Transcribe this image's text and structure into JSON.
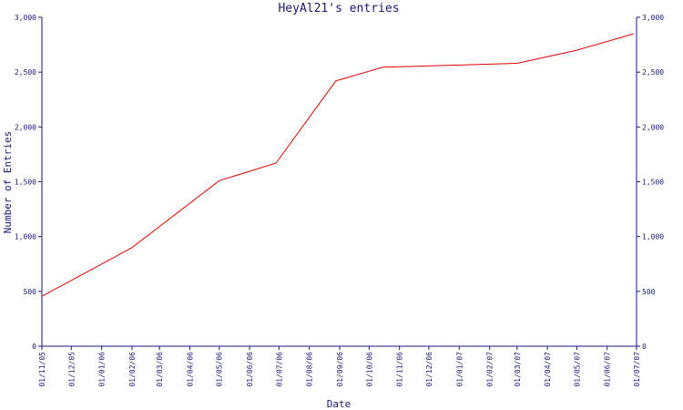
{
  "chart_data": {
    "type": "line",
    "title": "HeyAl21's entries",
    "xlabel": "Date",
    "ylabel": "Number of Entries",
    "ylim": [
      0,
      3000
    ],
    "y_ticks": [
      "0",
      "500",
      "1,000",
      "1,500",
      "2,000",
      "2,500",
      "3,000"
    ],
    "y_tick_values": [
      0,
      500,
      1000,
      1500,
      2000,
      2500,
      3000
    ],
    "x_tick_labels": [
      "01/11/05",
      "01/12/05",
      "01/01/06",
      "01/02/06",
      "01/03/06",
      "01/04/06",
      "01/05/06",
      "01/06/06",
      "01/07/06",
      "01/08/06",
      "01/09/06",
      "01/10/06",
      "01/11/06",
      "01/12/06",
      "01/01/07",
      "01/02/07",
      "01/03/07",
      "01/04/07",
      "01/05/07",
      "01/06/07",
      "01/07/07"
    ],
    "x_tick_dates": [
      "2005-11-01",
      "2005-12-01",
      "2006-01-01",
      "2006-02-01",
      "2006-03-01",
      "2006-04-01",
      "2006-05-01",
      "2006-06-01",
      "2006-07-01",
      "2006-08-01",
      "2006-09-01",
      "2006-10-01",
      "2006-11-01",
      "2006-12-01",
      "2007-01-01",
      "2007-02-01",
      "2007-03-01",
      "2007-04-01",
      "2007-05-01",
      "2007-06-01",
      "2007-07-01"
    ],
    "xlim": [
      "2005-11-01",
      "2007-07-01"
    ],
    "series": [
      {
        "color": "#e00000",
        "points": [
          {
            "x": "2005-11-01",
            "y": 455
          },
          {
            "x": "2006-02-01",
            "y": 900
          },
          {
            "x": "2006-05-01",
            "y": 1510
          },
          {
            "x": "2006-06-28",
            "y": 1670
          },
          {
            "x": "2006-08-28",
            "y": 2420
          },
          {
            "x": "2006-10-15",
            "y": 2545
          },
          {
            "x": "2007-03-01",
            "y": 2580
          },
          {
            "x": "2007-05-01",
            "y": 2700
          },
          {
            "x": "2007-06-28",
            "y": 2850
          }
        ]
      }
    ],
    "grid": false,
    "colors": {
      "axis": "#1a1a7a",
      "text": "#1a1a7a",
      "line": "#e00000"
    }
  }
}
